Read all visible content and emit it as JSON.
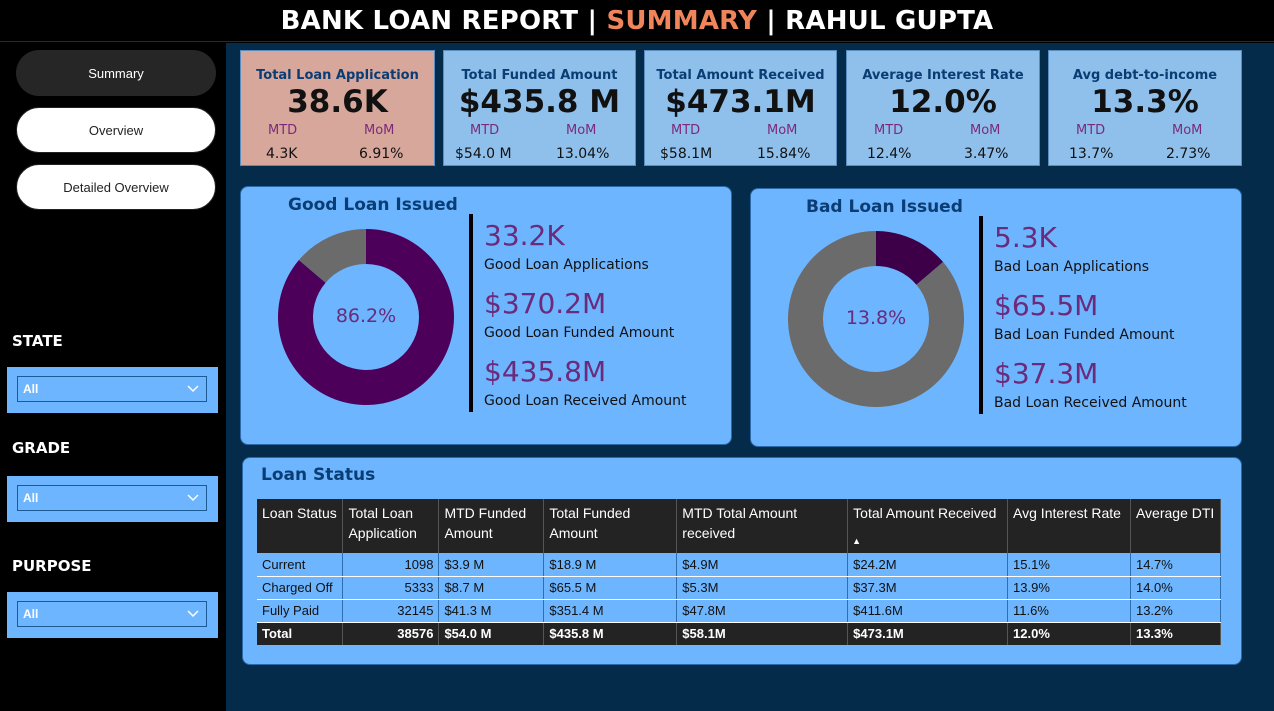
{
  "header": {
    "title_prefix": "BANK LOAN REPORT | ",
    "title_highlight": "SUMMARY",
    "title_suffix": " | RAHUL GUPTA"
  },
  "nav": {
    "items": [
      {
        "label": "Summary"
      },
      {
        "label": "Overview"
      },
      {
        "label": "Detailed Overview"
      }
    ]
  },
  "filters": {
    "state": {
      "label": "STATE",
      "value": "All"
    },
    "grade": {
      "label": "GRADE",
      "value": "All"
    },
    "purpose": {
      "label": "PURPOSE",
      "value": "All"
    }
  },
  "kpis": [
    {
      "title": "Total Loan Application",
      "value": "38.6K",
      "mtd_label": "MTD",
      "mom_label": "MoM",
      "mtd": "4.3K",
      "mom": "6.91%"
    },
    {
      "title": "Total Funded Amount",
      "value": "$435.8 M",
      "mtd_label": "MTD",
      "mom_label": "MoM",
      "mtd": "$54.0 M",
      "mom": "13.04%"
    },
    {
      "title": "Total Amount Received",
      "value": "$473.1M",
      "mtd_label": "MTD",
      "mom_label": "MoM",
      "mtd": "$58.1M",
      "mom": "15.84%"
    },
    {
      "title": "Average Interest Rate",
      "value": "12.0%",
      "mtd_label": "MTD",
      "mom_label": "MoM",
      "mtd": "12.4%",
      "mom": "3.47%"
    },
    {
      "title": "Avg debt-to-income",
      "value": "13.3%",
      "mtd_label": "MTD",
      "mom_label": "MoM",
      "mtd": "13.7%",
      "mom": "2.73%"
    }
  ],
  "good_loan": {
    "title": "Good Loan Issued",
    "percent_label": "86.2%",
    "percent": 86.2,
    "applications": "33.2K",
    "applications_label": "Good Loan Applications",
    "funded": "$370.2M",
    "funded_label": "Good Loan Funded Amount",
    "received": "$435.8M",
    "received_label": "Good Loan Received Amount",
    "colors": {
      "main": "#4d005a",
      "rest": "#6b6b6b"
    }
  },
  "bad_loan": {
    "title": "Bad Loan Issued",
    "percent_label": "13.8%",
    "percent": 13.8,
    "applications": "5.3K",
    "applications_label": "Bad Loan Applications",
    "funded": "$65.5M",
    "funded_label": "Bad Loan Funded Amount",
    "received": "$37.3M",
    "received_label": "Bad Loan Received Amount",
    "colors": {
      "main": "#3d0048",
      "rest": "#6b6b6b"
    }
  },
  "loan_status": {
    "title": "Loan Status",
    "columns": [
      "Loan Status",
      "Total Loan Application",
      "MTD Funded Amount",
      "Total Funded Amount",
      "MTD Total Amount received",
      "Total Amount Received",
      "Avg Interest Rate",
      "Average DTI"
    ],
    "rows": [
      [
        "Current",
        "1098",
        "$3.9 M",
        "$18.9 M",
        "$4.9M",
        "$24.2M",
        "15.1%",
        "14.7%"
      ],
      [
        "Charged Off",
        "5333",
        "$8.7 M",
        "$65.5 M",
        "$5.3M",
        "$37.3M",
        "13.9%",
        "14.0%"
      ],
      [
        "Fully Paid",
        "32145",
        "$41.3 M",
        "$351.4 M",
        "$47.8M",
        "$411.6M",
        "11.6%",
        "13.2%"
      ]
    ],
    "total": [
      "Total",
      "38576",
      "$54.0 M",
      "$435.8 M",
      "$58.1M",
      "$473.1M",
      "12.0%",
      "13.3%"
    ]
  }
}
